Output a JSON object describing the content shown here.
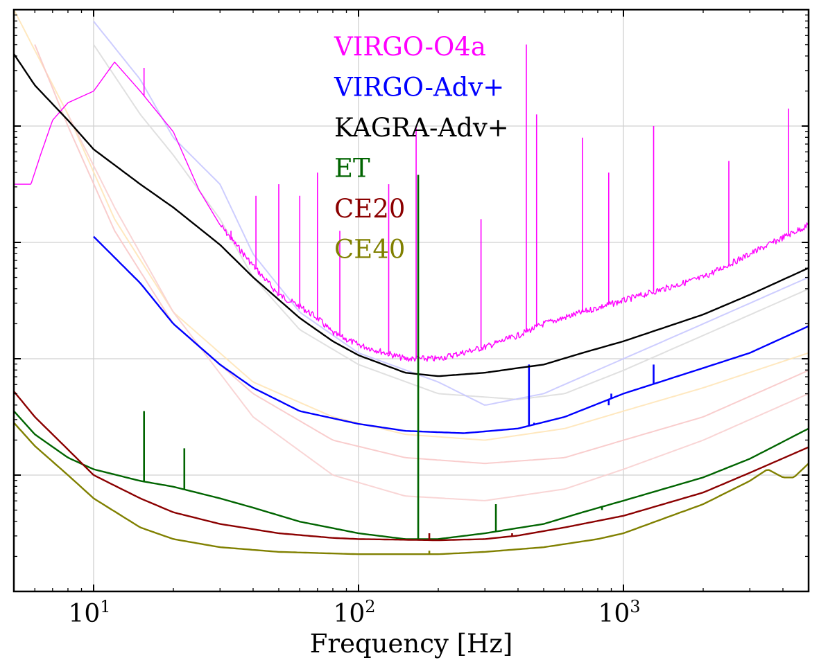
{
  "chart_data": {
    "type": "line",
    "title": "",
    "xlabel": "Frequency [Hz]",
    "ylabel": "",
    "xscale": "log",
    "yscale": "log",
    "xlim": [
      5,
      5000
    ],
    "ylim_log10": [
      -25,
      -20
    ],
    "grid": true,
    "legend_position": "top-center",
    "x_ticks": [
      {
        "base": "10",
        "exp": "1",
        "value": 10
      },
      {
        "base": "10",
        "exp": "2",
        "value": 100
      },
      {
        "base": "10",
        "exp": "3",
        "value": 1000
      }
    ],
    "series": [
      {
        "name": "VIRGO-O4a",
        "color": "#ff00ff",
        "points": [
          [
            5,
            -21.5
          ],
          [
            5.8,
            -21.5
          ],
          [
            6.3,
            -21.25
          ],
          [
            7,
            -20.95
          ],
          [
            8,
            -20.8
          ],
          [
            10,
            -20.7
          ],
          [
            12,
            -20.45
          ],
          [
            15,
            -20.7
          ],
          [
            20,
            -21.05
          ],
          [
            25,
            -21.55
          ],
          [
            30,
            -21.85
          ],
          [
            40,
            -22.2
          ],
          [
            50,
            -22.45
          ],
          [
            60,
            -22.55
          ],
          [
            70,
            -22.65
          ],
          [
            80,
            -22.78
          ],
          [
            100,
            -22.88
          ],
          [
            150,
            -23.0
          ],
          [
            200,
            -23.0
          ],
          [
            300,
            -22.9
          ],
          [
            400,
            -22.8
          ],
          [
            500,
            -22.7
          ],
          [
            700,
            -22.6
          ],
          [
            1000,
            -22.5
          ],
          [
            2000,
            -22.3
          ],
          [
            3000,
            -22.1
          ],
          [
            5000,
            -21.85
          ]
        ],
        "peaks": [
          [
            15.5,
            -20.5
          ],
          [
            33,
            -21.9
          ],
          [
            41,
            -21.6
          ],
          [
            50,
            -21.5
          ],
          [
            60,
            -21.6
          ],
          [
            70,
            -21.4
          ],
          [
            85,
            -21.9
          ],
          [
            130,
            -21.5
          ],
          [
            165,
            -21.0
          ],
          [
            290,
            -21.8
          ],
          [
            430,
            -20.3
          ],
          [
            470,
            -20.9
          ],
          [
            700,
            -21.1
          ],
          [
            880,
            -21.4
          ],
          [
            1300,
            -21.0
          ],
          [
            2500,
            -21.3
          ],
          [
            4200,
            -20.85
          ]
        ]
      },
      {
        "name": "VIRGO-Adv+",
        "color": "#0000ff",
        "points": [
          [
            10,
            -21.95
          ],
          [
            15,
            -22.35
          ],
          [
            20,
            -22.7
          ],
          [
            30,
            -23.05
          ],
          [
            40,
            -23.25
          ],
          [
            60,
            -23.45
          ],
          [
            100,
            -23.56
          ],
          [
            150,
            -23.62
          ],
          [
            250,
            -23.64
          ],
          [
            400,
            -23.6
          ],
          [
            600,
            -23.5
          ],
          [
            1000,
            -23.3
          ],
          [
            2000,
            -23.08
          ],
          [
            3000,
            -22.95
          ],
          [
            5000,
            -22.72
          ]
        ],
        "peaks": [
          [
            440,
            -23.05
          ],
          [
            460,
            -23.55
          ],
          [
            880,
            -23.4
          ],
          [
            900,
            -23.3
          ],
          [
            1300,
            -23.05
          ]
        ]
      },
      {
        "name": "KAGRA-Adv+",
        "color": "#000000",
        "points": [
          [
            5,
            -20.38
          ],
          [
            6,
            -20.65
          ],
          [
            8,
            -20.95
          ],
          [
            10,
            -21.2
          ],
          [
            15,
            -21.5
          ],
          [
            20,
            -21.7
          ],
          [
            30,
            -22.02
          ],
          [
            40,
            -22.3
          ],
          [
            60,
            -22.65
          ],
          [
            80,
            -22.85
          ],
          [
            100,
            -22.97
          ],
          [
            150,
            -23.12
          ],
          [
            200,
            -23.15
          ],
          [
            300,
            -23.12
          ],
          [
            400,
            -23.08
          ],
          [
            500,
            -23.05
          ],
          [
            700,
            -22.95
          ],
          [
            1000,
            -22.85
          ],
          [
            2000,
            -22.62
          ],
          [
            3000,
            -22.45
          ],
          [
            5000,
            -22.22
          ]
        ],
        "peaks": []
      },
      {
        "name": "ET",
        "color": "#006400",
        "points": [
          [
            5,
            -23.45
          ],
          [
            6,
            -23.65
          ],
          [
            8,
            -23.85
          ],
          [
            10,
            -23.95
          ],
          [
            15,
            -24.05
          ],
          [
            20,
            -24.1
          ],
          [
            30,
            -24.2
          ],
          [
            40,
            -24.28
          ],
          [
            60,
            -24.4
          ],
          [
            100,
            -24.5
          ],
          [
            150,
            -24.55
          ],
          [
            200,
            -24.55
          ],
          [
            300,
            -24.5
          ],
          [
            500,
            -24.42
          ],
          [
            700,
            -24.32
          ],
          [
            1000,
            -24.22
          ],
          [
            2000,
            -24.02
          ],
          [
            3000,
            -23.86
          ],
          [
            5000,
            -23.6
          ]
        ],
        "peaks": [
          [
            15.5,
            -23.45
          ],
          [
            22,
            -23.77
          ],
          [
            168,
            -21.42
          ],
          [
            330,
            -24.25
          ],
          [
            500,
            -24.42
          ],
          [
            830,
            -24.3
          ]
        ]
      },
      {
        "name": "CE20",
        "color": "#8b0000",
        "points": [
          [
            5,
            -23.28
          ],
          [
            6,
            -23.5
          ],
          [
            8,
            -23.78
          ],
          [
            10,
            -24.0
          ],
          [
            15,
            -24.2
          ],
          [
            20,
            -24.32
          ],
          [
            30,
            -24.42
          ],
          [
            50,
            -24.5
          ],
          [
            80,
            -24.54
          ],
          [
            100,
            -24.55
          ],
          [
            200,
            -24.56
          ],
          [
            300,
            -24.55
          ],
          [
            400,
            -24.52
          ],
          [
            600,
            -24.45
          ],
          [
            1000,
            -24.35
          ],
          [
            2000,
            -24.15
          ],
          [
            3000,
            -23.98
          ],
          [
            5000,
            -23.76
          ]
        ],
        "peaks": [
          [
            185,
            -24.5
          ],
          [
            380,
            -24.5
          ]
        ]
      },
      {
        "name": "CE40",
        "color": "#808000",
        "points": [
          [
            5,
            -23.55
          ],
          [
            6,
            -23.75
          ],
          [
            8,
            -24.0
          ],
          [
            10,
            -24.2
          ],
          [
            15,
            -24.45
          ],
          [
            20,
            -24.55
          ],
          [
            30,
            -24.62
          ],
          [
            50,
            -24.66
          ],
          [
            100,
            -24.68
          ],
          [
            200,
            -24.68
          ],
          [
            300,
            -24.66
          ],
          [
            500,
            -24.62
          ],
          [
            800,
            -24.55
          ],
          [
            1000,
            -24.5
          ],
          [
            2000,
            -24.25
          ],
          [
            3000,
            -24.05
          ],
          [
            3500,
            -23.95
          ],
          [
            4000,
            -24.02
          ],
          [
            4400,
            -24.02
          ],
          [
            5000,
            -23.9
          ]
        ],
        "peaks": [
          [
            185,
            -24.65
          ],
          [
            370,
            -24.64
          ]
        ]
      }
    ],
    "background_series": [
      {
        "name": "faint-gray-reference",
        "color": "#dddddd",
        "points": [
          [
            10,
            -20.3
          ],
          [
            15,
            -20.9
          ],
          [
            20,
            -21.25
          ],
          [
            30,
            -21.8
          ],
          [
            40,
            -22.3
          ],
          [
            60,
            -22.75
          ],
          [
            100,
            -23.05
          ],
          [
            200,
            -23.3
          ],
          [
            400,
            -23.35
          ],
          [
            600,
            -23.3
          ],
          [
            1000,
            -23.1
          ],
          [
            2000,
            -22.8
          ],
          [
            5000,
            -22.4
          ]
        ]
      },
      {
        "name": "faint-blue-reference",
        "color": "#c8c8ff",
        "points": [
          [
            10,
            -20.1
          ],
          [
            15,
            -20.6
          ],
          [
            20,
            -21.1
          ],
          [
            30,
            -21.5
          ],
          [
            40,
            -22.1
          ],
          [
            60,
            -22.6
          ],
          [
            100,
            -22.95
          ],
          [
            200,
            -23.2
          ],
          [
            300,
            -23.4
          ],
          [
            500,
            -23.3
          ],
          [
            1000,
            -23.0
          ],
          [
            2000,
            -22.7
          ],
          [
            5000,
            -22.3
          ]
        ]
      },
      {
        "name": "faint-orange-reference",
        "color": "#ffe5b8",
        "points": [
          [
            5,
            -20.0
          ],
          [
            8,
            -20.9
          ],
          [
            12,
            -21.8
          ],
          [
            20,
            -22.6
          ],
          [
            40,
            -23.2
          ],
          [
            80,
            -23.5
          ],
          [
            150,
            -23.65
          ],
          [
            300,
            -23.7
          ],
          [
            600,
            -23.6
          ],
          [
            1000,
            -23.45
          ],
          [
            2000,
            -23.25
          ],
          [
            5000,
            -22.95
          ]
        ]
      },
      {
        "name": "faint-red-reference-1",
        "color": "#f8c8c8",
        "points": [
          [
            6,
            -20.3
          ],
          [
            8,
            -21.0
          ],
          [
            12,
            -21.9
          ],
          [
            20,
            -22.7
          ],
          [
            40,
            -23.3
          ],
          [
            80,
            -23.7
          ],
          [
            150,
            -23.85
          ],
          [
            300,
            -23.9
          ],
          [
            600,
            -23.85
          ],
          [
            1000,
            -23.7
          ],
          [
            2000,
            -23.5
          ],
          [
            5000,
            -23.1
          ]
        ]
      },
      {
        "name": "faint-red-reference-2",
        "color": "#f8d0d0",
        "points": [
          [
            8,
            -20.9
          ],
          [
            12,
            -21.7
          ],
          [
            20,
            -22.6
          ],
          [
            40,
            -23.5
          ],
          [
            80,
            -24.0
          ],
          [
            150,
            -24.18
          ],
          [
            300,
            -24.22
          ],
          [
            600,
            -24.12
          ],
          [
            1000,
            -23.95
          ],
          [
            2000,
            -23.7
          ],
          [
            5000,
            -23.3
          ]
        ]
      }
    ]
  }
}
